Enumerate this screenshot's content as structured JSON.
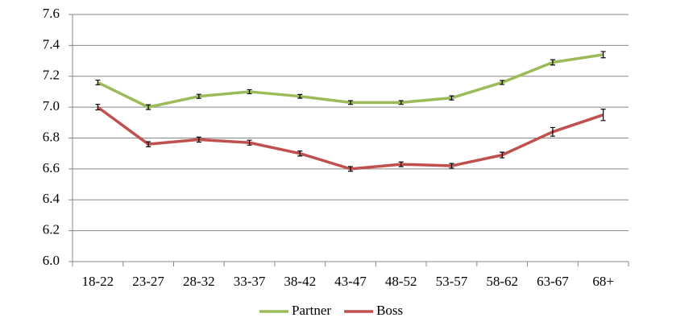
{
  "chart_data": {
    "type": "line",
    "categories": [
      "18-22",
      "23-27",
      "28-32",
      "33-37",
      "38-42",
      "43-47",
      "48-52",
      "53-57",
      "58-62",
      "63-67",
      "68+"
    ],
    "series": [
      {
        "name": "Partner",
        "color": "#9bbb59",
        "values": [
          7.16,
          7.0,
          7.07,
          7.1,
          7.07,
          7.03,
          7.03,
          7.06,
          7.16,
          7.29,
          7.34
        ],
        "errors": [
          0.015,
          0.015,
          0.013,
          0.013,
          0.012,
          0.012,
          0.012,
          0.013,
          0.013,
          0.017,
          0.02
        ]
      },
      {
        "name": "Boss",
        "color": "#c0504d",
        "values": [
          7.0,
          6.76,
          6.79,
          6.77,
          6.7,
          6.6,
          6.63,
          6.62,
          6.69,
          6.84,
          6.95
        ],
        "errors": [
          0.018,
          0.016,
          0.016,
          0.016,
          0.016,
          0.015,
          0.015,
          0.015,
          0.018,
          0.028,
          0.037
        ]
      }
    ],
    "ylim": [
      6.0,
      7.6
    ],
    "yticks": [
      {
        "value": 6.0,
        "label": "6.0"
      },
      6.2,
      6.4,
      6.6,
      6.8,
      {
        "value": 7.0,
        "label": "7.0"
      },
      7.2,
      7.4,
      7.6
    ],
    "grid": true,
    "legend": "bottom"
  }
}
